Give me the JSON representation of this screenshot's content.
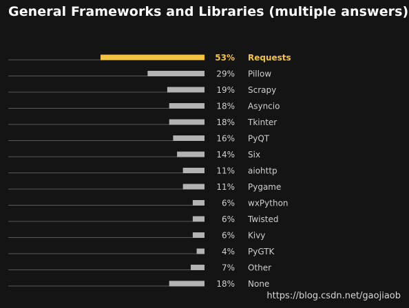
{
  "page": {
    "watermark": "https://blog.csdn.net/gaojiaob"
  },
  "colors": {
    "background": "#141414",
    "highlight_bar": "#f5c242",
    "normal_bar": "#b3b3b3",
    "baseline": "#5a5a5a",
    "highlight_text": "#f5c242",
    "normal_text": "#d0d0d0",
    "title_text": "#ffffff"
  },
  "chart_data": {
    "type": "bar",
    "orientation": "horizontal",
    "title": "General Frameworks and Libraries (multiple answers)",
    "value_suffix": "%",
    "highlight_category": "Requests",
    "xlim": [
      0,
      53
    ],
    "grid": false,
    "legend": "none",
    "categories": [
      "Requests",
      "Pillow",
      "Scrapy",
      "Asyncio",
      "Tkinter",
      "PyQT",
      "Six",
      "aiohttp",
      "Pygame",
      "wxPython",
      "Twisted",
      "Kivy",
      "PyGTK",
      "Other",
      "None"
    ],
    "values": [
      53,
      29,
      19,
      18,
      18,
      16,
      14,
      11,
      11,
      6,
      6,
      6,
      4,
      7,
      18
    ],
    "labels": [
      "53%",
      "29%",
      "19%",
      "18%",
      "18%",
      "16%",
      "14%",
      "11%",
      "11%",
      "6%",
      "6%",
      "6%",
      "4%",
      "7%",
      "18%"
    ]
  }
}
